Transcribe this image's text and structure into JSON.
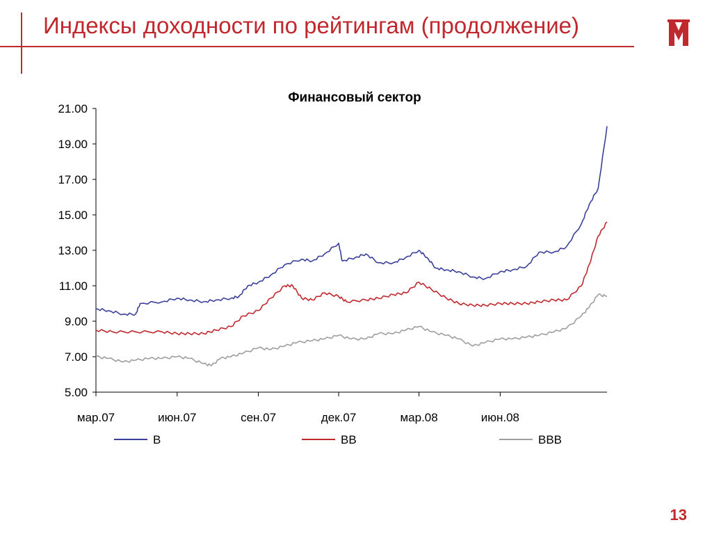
{
  "slide": {
    "title": "Индексы доходности по рейтингам (продолжение)",
    "page_number": "13",
    "accent_color": "#c0282d",
    "logo_icon": "m-logo-icon"
  },
  "chart_data": {
    "type": "line",
    "title": "Финансовый сектор",
    "xlabel": "",
    "ylabel": "",
    "ylim": [
      5,
      21
    ],
    "y_ticks": [
      "5.00",
      "7.00",
      "9.00",
      "11.00",
      "13.00",
      "15.00",
      "17.00",
      "19.00",
      "21.00"
    ],
    "x_ticks": [
      "мар.07",
      "июн.07",
      "сен.07",
      "дек.07",
      "мар.08",
      "июн.08"
    ],
    "x_tick_dates": [
      "2007-03-01",
      "2007-06-01",
      "2007-09-01",
      "2007-12-01",
      "2008-03-01",
      "2008-06-01"
    ],
    "xlim": [
      "2007-03-01",
      "2008-09-30"
    ],
    "grid": false,
    "legend_position": "bottom",
    "series": [
      {
        "name": "B",
        "color": "#3a3f9a",
        "points": [
          [
            "2007-03-01",
            9.7
          ],
          [
            "2007-03-15",
            9.6
          ],
          [
            "2007-04-01",
            9.4
          ],
          [
            "2007-04-15",
            9.4
          ],
          [
            "2007-04-20",
            10.0
          ],
          [
            "2007-05-15",
            10.1
          ],
          [
            "2007-06-01",
            10.3
          ],
          [
            "2007-06-15",
            10.2
          ],
          [
            "2007-07-01",
            10.1
          ],
          [
            "2007-07-15",
            10.2
          ],
          [
            "2007-08-01",
            10.3
          ],
          [
            "2007-08-10",
            10.4
          ],
          [
            "2007-08-20",
            11.0
          ],
          [
            "2007-09-01",
            11.2
          ],
          [
            "2007-09-15",
            11.6
          ],
          [
            "2007-10-01",
            12.2
          ],
          [
            "2007-10-20",
            12.5
          ],
          [
            "2007-11-01",
            12.4
          ],
          [
            "2007-11-15",
            12.8
          ],
          [
            "2007-12-01",
            13.4
          ],
          [
            "2007-12-05",
            12.4
          ],
          [
            "2007-12-20",
            12.6
          ],
          [
            "2008-01-01",
            12.8
          ],
          [
            "2008-01-15",
            12.3
          ],
          [
            "2008-02-01",
            12.3
          ],
          [
            "2008-02-15",
            12.6
          ],
          [
            "2008-03-01",
            13.0
          ],
          [
            "2008-03-10",
            12.6
          ],
          [
            "2008-03-20",
            12.0
          ],
          [
            "2008-04-01",
            11.9
          ],
          [
            "2008-04-15",
            11.8
          ],
          [
            "2008-05-01",
            11.5
          ],
          [
            "2008-05-15",
            11.4
          ],
          [
            "2008-06-01",
            11.8
          ],
          [
            "2008-06-15",
            11.9
          ],
          [
            "2008-07-01",
            12.1
          ],
          [
            "2008-07-15",
            12.9
          ],
          [
            "2008-08-01",
            12.9
          ],
          [
            "2008-08-15",
            13.2
          ],
          [
            "2008-09-01",
            14.5
          ],
          [
            "2008-09-10",
            15.6
          ],
          [
            "2008-09-20",
            16.5
          ],
          [
            "2008-09-30",
            20.0
          ]
        ]
      },
      {
        "name": "BB",
        "color": "#c0282d",
        "points": [
          [
            "2007-03-01",
            8.5
          ],
          [
            "2007-03-20",
            8.4
          ],
          [
            "2007-04-15",
            8.4
          ],
          [
            "2007-05-15",
            8.4
          ],
          [
            "2007-06-01",
            8.3
          ],
          [
            "2007-06-15",
            8.3
          ],
          [
            "2007-07-01",
            8.3
          ],
          [
            "2007-07-15",
            8.5
          ],
          [
            "2007-08-01",
            8.7
          ],
          [
            "2007-08-15",
            9.3
          ],
          [
            "2007-09-01",
            9.6
          ],
          [
            "2007-09-15",
            10.3
          ],
          [
            "2007-10-01",
            11.0
          ],
          [
            "2007-10-10",
            11.0
          ],
          [
            "2007-10-20",
            10.3
          ],
          [
            "2007-11-01",
            10.2
          ],
          [
            "2007-11-15",
            10.6
          ],
          [
            "2007-12-01",
            10.4
          ],
          [
            "2007-12-10",
            10.1
          ],
          [
            "2008-01-01",
            10.2
          ],
          [
            "2008-01-15",
            10.3
          ],
          [
            "2008-02-01",
            10.5
          ],
          [
            "2008-02-15",
            10.6
          ],
          [
            "2008-03-01",
            11.2
          ],
          [
            "2008-03-15",
            10.8
          ],
          [
            "2008-04-01",
            10.3
          ],
          [
            "2008-04-15",
            10.0
          ],
          [
            "2008-05-01",
            9.9
          ],
          [
            "2008-05-15",
            9.9
          ],
          [
            "2008-06-01",
            10.0
          ],
          [
            "2008-06-15",
            10.0
          ],
          [
            "2008-07-01",
            10.0
          ],
          [
            "2008-07-15",
            10.1
          ],
          [
            "2008-08-01",
            10.2
          ],
          [
            "2008-08-15",
            10.2
          ],
          [
            "2008-09-01",
            11.0
          ],
          [
            "2008-09-10",
            12.2
          ],
          [
            "2008-09-20",
            13.8
          ],
          [
            "2008-09-30",
            14.6
          ]
        ]
      },
      {
        "name": "BBB",
        "color": "#9e9e9e",
        "points": [
          [
            "2007-03-01",
            7.0
          ],
          [
            "2007-03-15",
            6.9
          ],
          [
            "2007-04-01",
            6.7
          ],
          [
            "2007-04-15",
            6.8
          ],
          [
            "2007-05-01",
            6.9
          ],
          [
            "2007-05-15",
            6.9
          ],
          [
            "2007-06-01",
            7.0
          ],
          [
            "2007-06-15",
            6.9
          ],
          [
            "2007-07-01",
            6.6
          ],
          [
            "2007-07-10",
            6.5
          ],
          [
            "2007-07-20",
            6.9
          ],
          [
            "2007-08-01",
            7.0
          ],
          [
            "2007-08-15",
            7.2
          ],
          [
            "2007-09-01",
            7.5
          ],
          [
            "2007-09-15",
            7.4
          ],
          [
            "2007-10-01",
            7.6
          ],
          [
            "2007-10-15",
            7.8
          ],
          [
            "2007-11-01",
            7.9
          ],
          [
            "2007-11-15",
            8.0
          ],
          [
            "2007-12-01",
            8.2
          ],
          [
            "2007-12-15",
            8.0
          ],
          [
            "2008-01-01",
            8.0
          ],
          [
            "2008-01-15",
            8.3
          ],
          [
            "2008-02-01",
            8.3
          ],
          [
            "2008-02-15",
            8.5
          ],
          [
            "2008-03-01",
            8.7
          ],
          [
            "2008-03-15",
            8.4
          ],
          [
            "2008-04-01",
            8.2
          ],
          [
            "2008-04-15",
            8.0
          ],
          [
            "2008-05-01",
            7.6
          ],
          [
            "2008-05-15",
            7.8
          ],
          [
            "2008-06-01",
            8.0
          ],
          [
            "2008-06-15",
            8.0
          ],
          [
            "2008-07-01",
            8.1
          ],
          [
            "2008-07-15",
            8.2
          ],
          [
            "2008-08-01",
            8.4
          ],
          [
            "2008-08-15",
            8.6
          ],
          [
            "2008-09-01",
            9.3
          ],
          [
            "2008-09-10",
            9.8
          ],
          [
            "2008-09-20",
            10.5
          ],
          [
            "2008-09-30",
            10.4
          ]
        ]
      }
    ]
  }
}
